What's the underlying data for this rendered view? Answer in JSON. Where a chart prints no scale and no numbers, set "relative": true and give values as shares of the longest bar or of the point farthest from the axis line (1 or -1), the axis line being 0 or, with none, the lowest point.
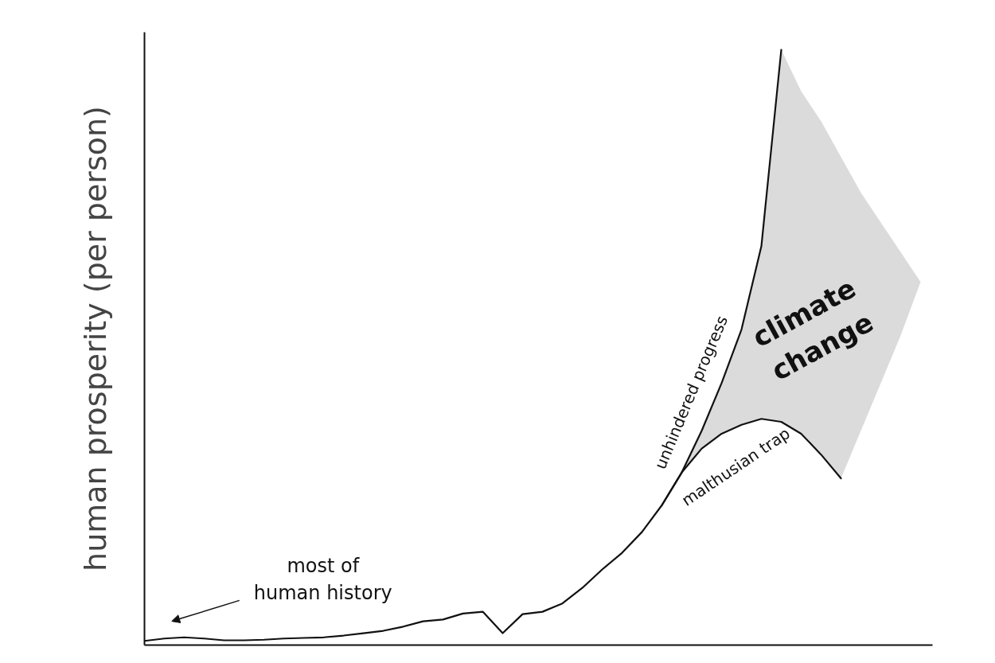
{
  "chart_data": {
    "type": "line",
    "relative": true,
    "ylabel": "human prosperity (per person)",
    "categories": [
      null,
      null,
      null,
      null,
      null,
      null,
      null,
      null,
      null,
      null,
      null,
      null,
      null,
      null,
      null,
      null,
      null,
      null,
      null,
      null,
      null,
      null,
      null,
      null,
      null,
      null,
      null,
      null,
      null,
      null,
      null,
      null,
      null,
      null,
      null,
      null,
      null,
      null,
      null,
      null
    ],
    "series": [
      {
        "name": "unhindered progress",
        "color": "#111111",
        "values": [
          0.007,
          0.011,
          0.013,
          0.011,
          0.008,
          0.008,
          0.009,
          0.011,
          0.012,
          0.013,
          0.016,
          0.02,
          0.024,
          0.031,
          0.04,
          0.043,
          0.053,
          0.056,
          0.02,
          0.052,
          0.056,
          0.07,
          0.096,
          0.127,
          0.155,
          0.19,
          0.235,
          0.29,
          0.36,
          0.44,
          0.53,
          0.67,
          1.0,
          null,
          null,
          null,
          null,
          null,
          null,
          null
        ],
        "lower": [
          null,
          null,
          null,
          null,
          null,
          null,
          null,
          null,
          null,
          null,
          null,
          null,
          null,
          null,
          null,
          null,
          null,
          null,
          null,
          null,
          null,
          null,
          null,
          null,
          null,
          null,
          0.235,
          0.29,
          0.33,
          0.355,
          0.37,
          0.38,
          0.375,
          0.355,
          0.32,
          0.28,
          0.36,
          0.44,
          0.52,
          0.61
        ],
        "upper": [
          null,
          null,
          null,
          null,
          null,
          null,
          null,
          null,
          null,
          null,
          null,
          null,
          null,
          null,
          null,
          null,
          null,
          null,
          null,
          null,
          null,
          null,
          null,
          null,
          null,
          null,
          0.235,
          0.29,
          0.36,
          0.44,
          0.53,
          0.67,
          1.0,
          0.93,
          0.88,
          0.82,
          0.76,
          0.71,
          0.66,
          0.61
        ]
      },
      {
        "name": "malthusian trap",
        "color": "#111111",
        "values": [
          null,
          null,
          null,
          null,
          null,
          null,
          null,
          null,
          null,
          null,
          null,
          null,
          null,
          null,
          null,
          null,
          null,
          null,
          null,
          null,
          null,
          null,
          null,
          null,
          null,
          null,
          0.235,
          0.29,
          0.33,
          0.355,
          0.37,
          0.38,
          0.375,
          0.355,
          0.32,
          0.28,
          null,
          null,
          null,
          null
        ]
      }
    ],
    "annotations": [
      "most of\nhuman history",
      "climate\nchange"
    ],
    "grid": false
  }
}
